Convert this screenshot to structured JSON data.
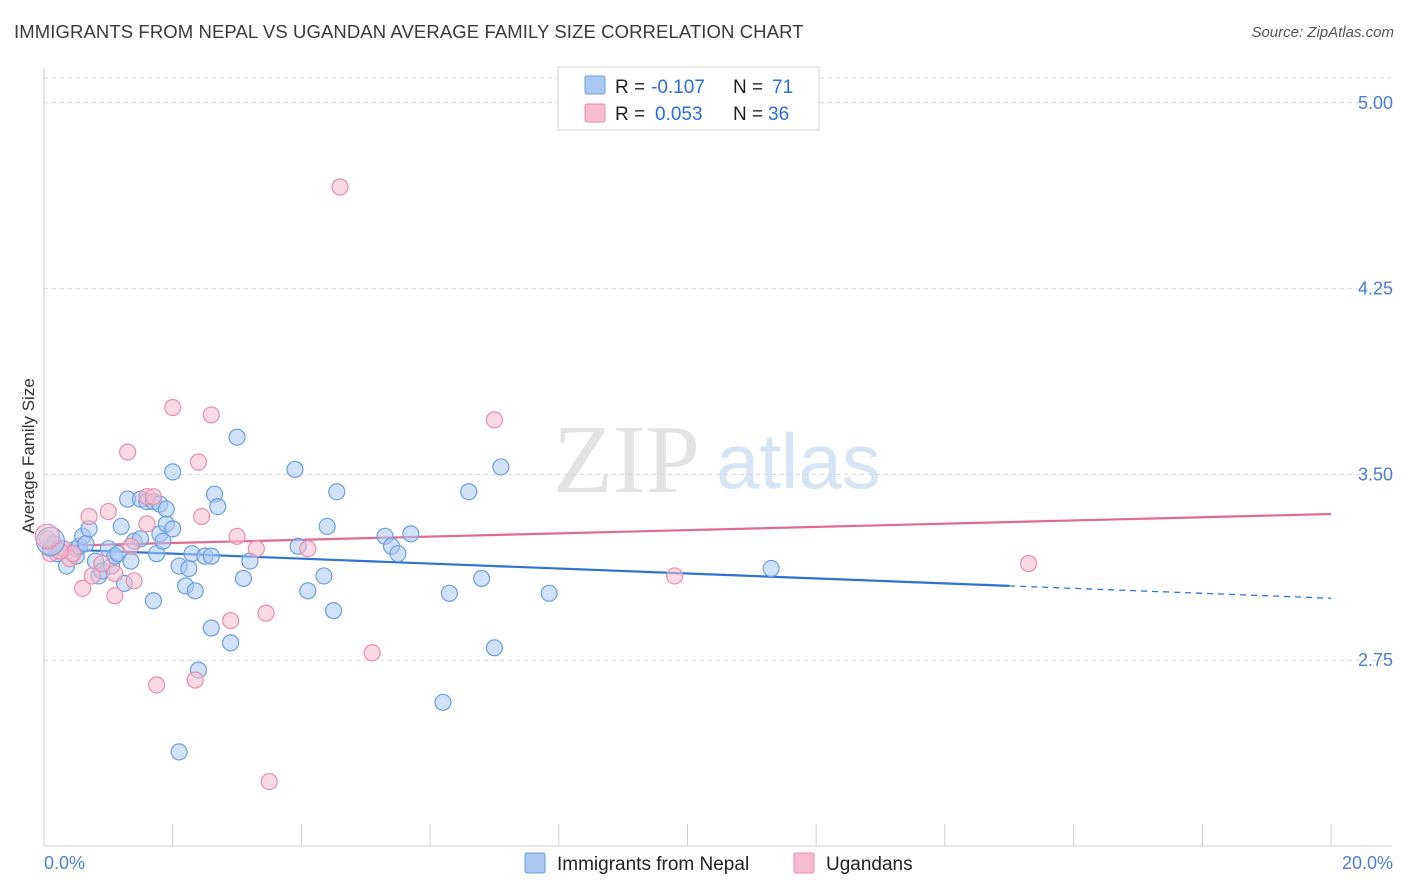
{
  "title": "IMMIGRANTS FROM NEPAL VS UGANDAN AVERAGE FAMILY SIZE CORRELATION CHART",
  "source": "Source: ZipAtlas.com",
  "watermark": {
    "zip": "ZIP",
    "atlas": "atlas"
  },
  "colors": {
    "blue_fill": "#a9c9f3",
    "blue_stroke": "#6a9fe0",
    "blue_line": "#2f74d0",
    "pink_fill": "#f7bccd",
    "pink_stroke": "#e98eaa",
    "pink_line": "#e06a93",
    "axis_text": "#4a7fd4",
    "grid": "#d9d9d9"
  },
  "stats_legend": [
    {
      "r_label": "R =",
      "r_value": "-0.107",
      "n_label": "N =",
      "n_value": "71",
      "series": "blue"
    },
    {
      "r_label": "R =",
      "r_value": "0.053",
      "n_label": "N =",
      "n_value": "36",
      "series": "pink"
    }
  ],
  "chart_data": {
    "type": "scatter",
    "title": "IMMIGRANTS FROM NEPAL VS UGANDAN AVERAGE FAMILY SIZE CORRELATION CHART",
    "xlabel": "",
    "ylabel": "Average Family Size",
    "xlim": [
      0,
      20
    ],
    "ylim": [
      2.0,
      5.1
    ],
    "x_unit": "%",
    "y_ticks": [
      2.75,
      3.5,
      4.25,
      5.0
    ],
    "y_tick_labels": [
      "2.75",
      "3.50",
      "4.25",
      "5.00"
    ],
    "x_tick_labels": [
      "0.0%",
      "20.0%"
    ],
    "grid": true,
    "legend_position": "bottom-center",
    "series": [
      {
        "name": "Immigrants from Nepal",
        "color": "blue",
        "trend": {
          "x0": 0,
          "y0": 3.2,
          "x1": 15.0,
          "y1": 3.05,
          "dashed_to_x": 20.0,
          "dashed_to_y": 3.0
        },
        "points": [
          [
            0.1,
            3.2
          ],
          [
            0.15,
            3.22
          ],
          [
            0.2,
            3.18
          ],
          [
            0.3,
            3.2
          ],
          [
            0.35,
            3.13
          ],
          [
            0.5,
            3.17
          ],
          [
            0.5,
            3.2
          ],
          [
            0.55,
            3.21
          ],
          [
            0.6,
            3.25
          ],
          [
            0.65,
            3.22
          ],
          [
            0.7,
            3.28
          ],
          [
            0.8,
            3.15
          ],
          [
            0.85,
            3.09
          ],
          [
            0.9,
            3.11
          ],
          [
            1.0,
            3.2
          ],
          [
            1.05,
            3.13
          ],
          [
            1.1,
            3.17
          ],
          [
            1.15,
            3.18
          ],
          [
            1.2,
            3.29
          ],
          [
            1.25,
            3.06
          ],
          [
            1.3,
            3.4
          ],
          [
            1.35,
            3.15
          ],
          [
            1.4,
            3.23
          ],
          [
            1.5,
            3.4
          ],
          [
            1.5,
            3.24
          ],
          [
            1.6,
            3.39
          ],
          [
            1.7,
            2.99
          ],
          [
            1.7,
            3.39
          ],
          [
            1.75,
            3.18
          ],
          [
            1.8,
            3.38
          ],
          [
            1.8,
            3.26
          ],
          [
            1.85,
            3.23
          ],
          [
            1.9,
            3.3
          ],
          [
            1.9,
            3.36
          ],
          [
            2.0,
            3.51
          ],
          [
            2.0,
            3.28
          ],
          [
            2.1,
            3.13
          ],
          [
            2.1,
            2.38
          ],
          [
            2.2,
            3.05
          ],
          [
            2.25,
            3.12
          ],
          [
            2.3,
            3.18
          ],
          [
            2.35,
            3.03
          ],
          [
            2.4,
            2.71
          ],
          [
            2.5,
            3.17
          ],
          [
            2.6,
            3.17
          ],
          [
            2.6,
            2.88
          ],
          [
            2.65,
            3.42
          ],
          [
            2.7,
            3.37
          ],
          [
            2.9,
            2.82
          ],
          [
            3.0,
            3.65
          ],
          [
            3.1,
            3.08
          ],
          [
            3.2,
            3.15
          ],
          [
            3.9,
            3.52
          ],
          [
            3.95,
            3.21
          ],
          [
            4.1,
            3.03
          ],
          [
            4.35,
            3.09
          ],
          [
            4.4,
            3.29
          ],
          [
            4.5,
            2.95
          ],
          [
            4.55,
            3.43
          ],
          [
            5.3,
            3.25
          ],
          [
            5.4,
            3.21
          ],
          [
            5.5,
            3.18
          ],
          [
            5.7,
            3.26
          ],
          [
            6.2,
            2.58
          ],
          [
            6.3,
            3.02
          ],
          [
            6.6,
            3.43
          ],
          [
            6.8,
            3.08
          ],
          [
            7.0,
            2.8
          ],
          [
            7.1,
            3.53
          ],
          [
            7.85,
            3.02
          ],
          [
            11.3,
            3.12
          ]
        ]
      },
      {
        "name": "Ugandans",
        "color": "pink",
        "trend": {
          "x0": 0,
          "y0": 3.21,
          "x1": 20.0,
          "y1": 3.34
        },
        "points": [
          [
            0.05,
            3.24
          ],
          [
            0.1,
            3.18
          ],
          [
            0.3,
            3.2
          ],
          [
            0.4,
            3.16
          ],
          [
            0.45,
            3.18
          ],
          [
            0.6,
            3.04
          ],
          [
            0.7,
            3.33
          ],
          [
            0.75,
            3.09
          ],
          [
            0.9,
            3.14
          ],
          [
            1.0,
            3.35
          ],
          [
            1.1,
            3.1
          ],
          [
            1.1,
            3.01
          ],
          [
            1.3,
            3.59
          ],
          [
            1.35,
            3.21
          ],
          [
            1.4,
            3.07
          ],
          [
            1.6,
            3.3
          ],
          [
            1.6,
            3.41
          ],
          [
            1.7,
            3.41
          ],
          [
            1.75,
            2.65
          ],
          [
            2.0,
            3.77
          ],
          [
            2.35,
            2.67
          ],
          [
            2.4,
            3.55
          ],
          [
            2.45,
            3.33
          ],
          [
            2.6,
            3.74
          ],
          [
            2.9,
            2.91
          ],
          [
            3.0,
            3.25
          ],
          [
            3.3,
            3.2
          ],
          [
            3.45,
            2.94
          ],
          [
            3.5,
            2.26
          ],
          [
            4.1,
            3.2
          ],
          [
            4.6,
            4.66
          ],
          [
            5.1,
            2.78
          ],
          [
            7.0,
            3.72
          ],
          [
            9.8,
            3.09
          ],
          [
            15.3,
            3.14
          ],
          [
            0.25,
            3.19
          ]
        ]
      }
    ]
  }
}
